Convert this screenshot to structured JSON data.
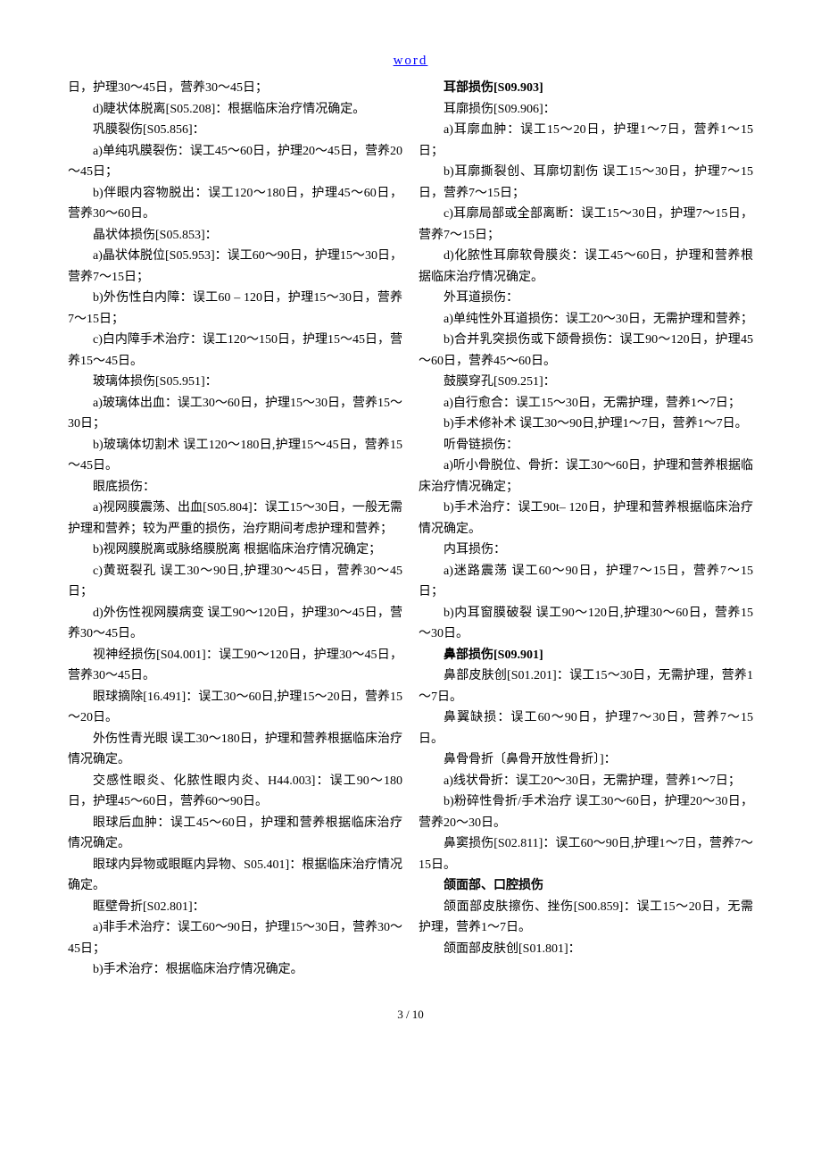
{
  "header_link": "word",
  "footer": "3 / 10",
  "left_column": [
    {
      "text": "日，护理30～45日，营养30～45日；",
      "indent": false,
      "bold": false
    },
    {
      "text": "d)睫状体脱离[S05.208]：根据临床治疗情况确定。",
      "indent": true,
      "bold": false
    },
    {
      "text": "巩膜裂伤[S05.856]：",
      "indent": true,
      "bold": false
    },
    {
      "text": "a)单纯巩膜裂伤：误工45～60日，护理20～45日，营养20～45日；",
      "indent": true,
      "bold": false
    },
    {
      "text": "b)伴眼内容物脱出：误工120～180日，护理45～60日，营养30～60日。",
      "indent": true,
      "bold": false
    },
    {
      "text": "晶状体损伤[S05.853]：",
      "indent": true,
      "bold": false
    },
    {
      "text": "a)晶状体脱位[S05.953]：误工60～90日，护理15～30日，营养7～15日；",
      "indent": true,
      "bold": false
    },
    {
      "text": "b)外伤性白内障：误工60 – 120日，护理15～30日，营养7～15日；",
      "indent": true,
      "bold": false
    },
    {
      "text": "c)白内障手术治疗：误工120～150日，护理15～45日，营养15～45日。",
      "indent": true,
      "bold": false
    },
    {
      "text": "玻璃体损伤[S05.951]：",
      "indent": true,
      "bold": false
    },
    {
      "text": "a)玻璃体出血：误工30～60日，护理15～30日，营养15～30日；",
      "indent": true,
      "bold": false
    },
    {
      "text": "b)玻璃体切割术 误工120～180日,护理15～45日，营养15～45日。",
      "indent": true,
      "bold": false
    },
    {
      "text": "眼底损伤：",
      "indent": true,
      "bold": false
    },
    {
      "text": "a)视网膜震荡、出血[S05.804]：误工15～30日，一般无需护理和营养；较为严重的损伤，治疗期间考虑护理和营养；",
      "indent": true,
      "bold": false
    },
    {
      "text": "b)视网膜脱离或脉络膜脱离 根据临床治疗情况确定；",
      "indent": true,
      "bold": false
    },
    {
      "text": "c)黄斑裂孔 误工30～90日,护理30～45日，营养30～45日；",
      "indent": true,
      "bold": false
    },
    {
      "text": "d)外伤性视网膜病变 误工90～120日，护理30～45日，营养30～45日。",
      "indent": true,
      "bold": false
    },
    {
      "text": "视神经损伤[S04.001]：误工90～120日，护理30～45日，营养30～45日。",
      "indent": true,
      "bold": false
    },
    {
      "text": "眼球摘除[16.491]：误工30～60日,护理15～20日，营养15～20日。",
      "indent": true,
      "bold": false
    },
    {
      "text": "外伤性青光眼 误工30～180日，护理和营养根据临床治疗情况确定。",
      "indent": true,
      "bold": false
    },
    {
      "text": "交感性眼炎、化脓性眼内炎、H44.003]：误工90～180日，护理45～60日，营养60～90日。",
      "indent": true,
      "bold": false
    },
    {
      "text": "眼球后血肿：误工45～60日，护理和营养根据临床治疗情况确定。",
      "indent": true,
      "bold": false
    },
    {
      "text": "眼球内异物或眼眶内异物、S05.401]：根据临床治疗情况确定。",
      "indent": true,
      "bold": false
    },
    {
      "text": "眶壁骨折[S02.801]：",
      "indent": true,
      "bold": false
    },
    {
      "text": "a)非手术治疗：误工60～90日，护理15～30日，营养30～45日；",
      "indent": true,
      "bold": false
    },
    {
      "text": "b)手术治疗：根据临床治疗情况确定。",
      "indent": true,
      "bold": false
    }
  ],
  "right_column": [
    {
      "text": "耳部损伤[S09.903]",
      "indent": true,
      "bold": true
    },
    {
      "text": "耳廓损伤[S09.906]：",
      "indent": true,
      "bold": false
    },
    {
      "text": "a)耳廓血肿：误工15～20日，护理1～7日，营养1～15日；",
      "indent": true,
      "bold": false
    },
    {
      "text": "b)耳廓撕裂创、耳廓切割伤 误工15～30日，护理7～15日，营养7～15日；",
      "indent": true,
      "bold": false
    },
    {
      "text": "c)耳廓局部或全部离断：误工15～30日，护理7～15日，营养7～15日；",
      "indent": true,
      "bold": false
    },
    {
      "text": "d)化脓性耳廓软骨膜炎：误工45～60日，护理和营养根据临床治疗情况确定。",
      "indent": true,
      "bold": false
    },
    {
      "text": "外耳道损伤：",
      "indent": true,
      "bold": false
    },
    {
      "text": "a)单纯性外耳道损伤：误工20～30日，无需护理和营养；",
      "indent": true,
      "bold": false
    },
    {
      "text": "b)合并乳突损伤或下颌骨损伤：误工90～120日，护理45～60日，营养45～60日。",
      "indent": true,
      "bold": false
    },
    {
      "text": "鼓膜穿孔[S09.251]：",
      "indent": true,
      "bold": false
    },
    {
      "text": "a)自行愈合：误工15～30日，无需护理，营养1～7日；",
      "indent": true,
      "bold": false
    },
    {
      "text": "b)手术修补术 误工30～90日,护理1～7日，营养1～7日。",
      "indent": true,
      "bold": false
    },
    {
      "text": "听骨链损伤：",
      "indent": true,
      "bold": false
    },
    {
      "text": "a)听小骨脱位、骨折：误工30～60日，护理和营养根据临床治疗情况确定；",
      "indent": true,
      "bold": false
    },
    {
      "text": "b)手术治疗：误工90t– 120日，护理和营养根据临床治疗情况确定。",
      "indent": true,
      "bold": false
    },
    {
      "text": "内耳损伤：",
      "indent": true,
      "bold": false
    },
    {
      "text": "a)迷路震荡 误工60～90日，护理7～15日，营养7～15日；",
      "indent": true,
      "bold": false
    },
    {
      "text": "b)内耳窗膜破裂 误工90～120日,护理30～60日，营养15～30日。",
      "indent": true,
      "bold": false
    },
    {
      "text": "鼻部损伤[S09.901]",
      "indent": true,
      "bold": true
    },
    {
      "text": "鼻部皮肤创[S01.201]：误工15～30日，无需护理，营养1～7日。",
      "indent": true,
      "bold": false
    },
    {
      "text": "鼻翼缺损：误工60～90日，护理7～30日，营养7～15日。",
      "indent": true,
      "bold": false
    },
    {
      "text": "鼻骨骨折〔鼻骨开放性骨折〕]：",
      "indent": true,
      "bold": false
    },
    {
      "text": "a)线状骨折：误工20～30日，无需护理，营养1～7日；",
      "indent": true,
      "bold": false
    },
    {
      "text": "b)粉碎性骨折/手术治疗 误工30～60日，护理20～30日，营养20～30日。",
      "indent": true,
      "bold": false
    },
    {
      "text": "鼻窦损伤[S02.811]：误工60～90日,护理1～7日，营养7～15日。",
      "indent": true,
      "bold": false
    },
    {
      "text": "颌面部、口腔损伤",
      "indent": true,
      "bold": true
    },
    {
      "text": "颌面部皮肤擦伤、挫伤[S00.859]：误工15～20日，无需护理，营养1～7日。",
      "indent": true,
      "bold": false
    },
    {
      "text": "颌面部皮肤创[S01.801]：",
      "indent": true,
      "bold": false
    }
  ]
}
